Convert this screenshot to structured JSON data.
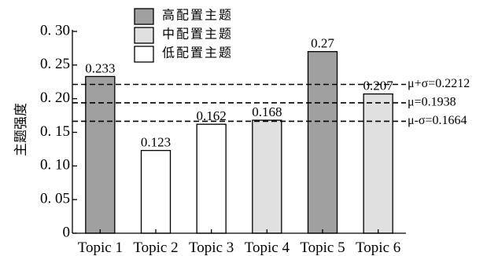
{
  "chart_data": {
    "type": "bar",
    "categories": [
      "Topic 1",
      "Topic 2",
      "Topic 3",
      "Topic 4",
      "Topic 5",
      "Topic 6"
    ],
    "values": [
      0.233,
      0.123,
      0.162,
      0.168,
      0.27,
      0.207
    ],
    "data_labels": [
      "0.233",
      "0.123",
      "0.162",
      "0.168",
      "0.27",
      "0.207"
    ],
    "groups": [
      "high",
      "low",
      "low",
      "mid",
      "high",
      "mid"
    ],
    "ylabel": "主题强度",
    "xlabel": "",
    "ylim": [
      0,
      0.3
    ],
    "yticks": [
      0,
      0.05,
      0.1,
      0.15,
      0.2,
      0.25,
      0.3
    ],
    "ytick_labels": [
      "0",
      "0. 05",
      "0. 10",
      "0. 15",
      "0. 20",
      "0. 25",
      "0. 30"
    ],
    "grid": false,
    "legend_position": "top-center",
    "legend": [
      {
        "key": "high",
        "label": "高配置主题",
        "color": "#a0a0a0"
      },
      {
        "key": "mid",
        "label": "中配置主题",
        "color": "#e0e0e0"
      },
      {
        "key": "low",
        "label": "低配置主题",
        "color": "#ffffff"
      }
    ],
    "reference_lines": [
      {
        "value": 0.2212,
        "label": "μ+σ=0.2212"
      },
      {
        "value": 0.1938,
        "label": "μ=0.1938"
      },
      {
        "value": 0.1664,
        "label": "μ-σ=0.1664"
      }
    ]
  }
}
